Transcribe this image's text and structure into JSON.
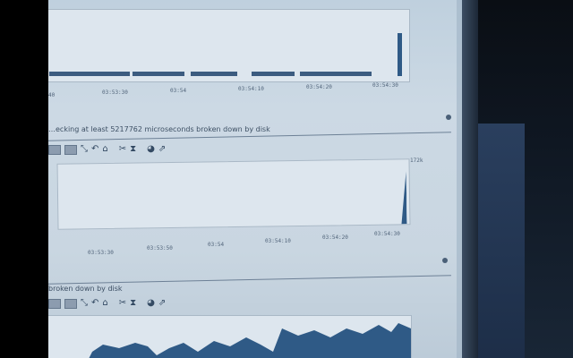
{
  "panels": [
    {
      "ticks": [
        "40",
        "03:53:30",
        "03:54",
        "03:54:10",
        "03:54:20",
        "03:54:30"
      ],
      "y_max_label": ""
    },
    {
      "title": "…ecking at least 5217762 microseconds broken down by disk",
      "ticks": [
        "03:53:30",
        "03:53:50",
        "03:54",
        "03:54:10",
        "03:54:20",
        "03:54:30"
      ],
      "y_max_label": "172k"
    },
    {
      "title": "broken down by disk",
      "ticks": [],
      "y_max_label": ""
    }
  ],
  "icons": [
    "table-icon",
    "calendar-icon",
    "zoom-icon",
    "undo-icon",
    "lock-icon",
    "scissors-icon",
    "hourglass-icon",
    "pie-icon",
    "export-icon"
  ],
  "colors": {
    "series": "#2f5a86",
    "screen": "#c9d6e1"
  }
}
